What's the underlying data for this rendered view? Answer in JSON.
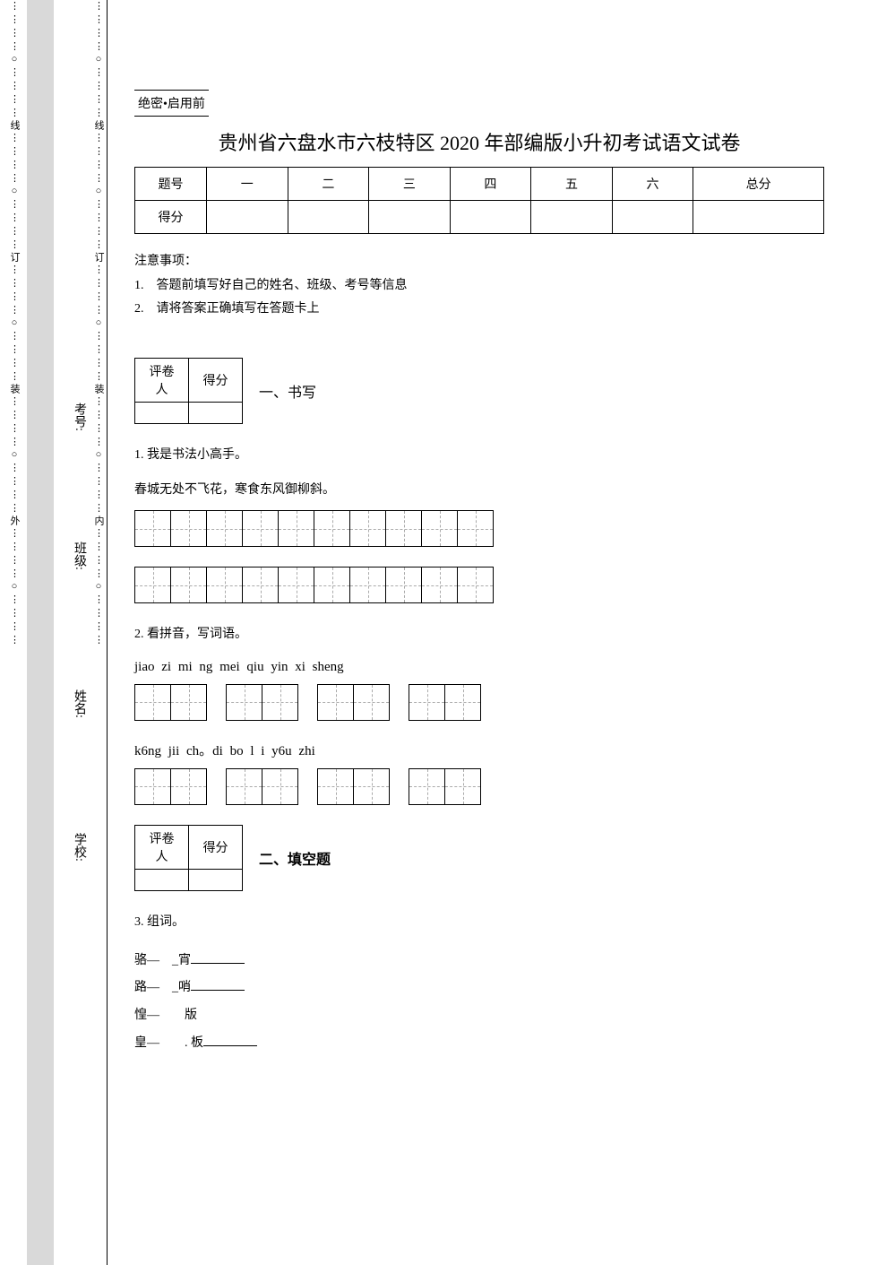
{
  "header_mark": "绝密•启用前",
  "main_title": "贵州省六盘水市六枝特区 2020 年部编版小升初考试语文试卷",
  "score_table": {
    "row1": [
      "题号",
      "一",
      "二",
      "三",
      "四",
      "五",
      "六",
      "总分"
    ],
    "row2_label": "得分"
  },
  "notice": {
    "heading": "注意事项：",
    "item1": "1.　答题前填写好自己的姓名、班级、考号等信息",
    "item2": "2.　请将答案正确填写在答题卡上"
  },
  "grader": {
    "col1": "评卷人",
    "col2": "得分"
  },
  "section1_title": "一、书写",
  "q1_text": "1. 我是书法小高手。",
  "q1_poem": "春城无处不飞花，寒食东风御柳斜。",
  "q2_text": "2. 看拼音，写词语。",
  "q2_pinyin1": "jiao zi mi ng mei qiu yin xi sheng",
  "q2_pinyin2": "k6ng jii ch。di bo l i y6u zhi",
  "section2_title": "二、填空题",
  "q3_text": "3. 组词。",
  "q3_pairs": {
    "p1a": "骆—",
    "p1b": "_宵",
    "p2a": "路—",
    "p2b": "_哨",
    "p3a": "惶—",
    "p3b": "　版",
    "p4a": "皇—",
    "p4b": "　. 板"
  },
  "margin": {
    "school": "学校:",
    "name": "姓名:",
    "class": "班级:",
    "examno": "考号:",
    "outer_chars": "外",
    "inner_chars": "内",
    "zhuang": "装",
    "ding": "订",
    "xian": "线"
  },
  "style": {
    "bg": "#ffffff",
    "gray": "#d9d9d9",
    "border": "#000000",
    "dash": "#aaaaaa",
    "title_fontsize": 22,
    "body_fontsize": 14
  }
}
